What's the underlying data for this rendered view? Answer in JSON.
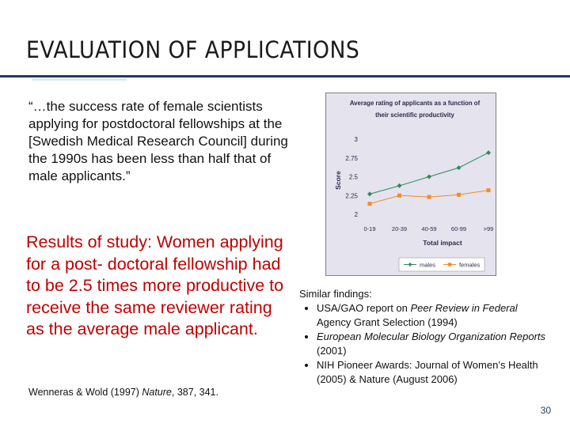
{
  "slide": {
    "title": "EVALUATION OF APPLICATIONS",
    "quote": "“…the success rate of female scientists applying for postdoctoral fellowships at the [Swedish Medical Research Council] during the 1990s has been less than half that of male applicants.”",
    "results": "Results of study: Women applying for a post- doctoral fellowship had to be 2.5 times more productive to receive the same reviewer rating as the average male applicant.",
    "citation": {
      "authors": "Wenneras & Wold (1997) ",
      "journal": "Nature",
      "ref": ", 387, 341."
    },
    "findings": {
      "heading": "Similar findings:",
      "items": [
        {
          "pre": "USA/GAO report on ",
          "em": "Peer Review in Federal",
          "post": " Agency Grant Selection (1994)"
        },
        {
          "pre": "",
          "em": "European Molecular Biology Organization Reports",
          "post": " (2001)"
        },
        {
          "pre": "NIH Pioneer Awards: Journal of Women’s Health (2005) & Nature (August 2006)",
          "em": "",
          "post": ""
        }
      ]
    },
    "page_number": "30"
  },
  "chart_data": {
    "type": "line",
    "title_line1": "Average rating of applicants as a function of",
    "title_line2": "their scientific productivity",
    "xlabel": "Total impact",
    "ylabel": "Score",
    "categories": [
      "0-19",
      "20-39",
      "40-59",
      "60-99",
      ">99"
    ],
    "yticks": [
      "3",
      "2.75",
      "2.5",
      "2.25",
      "2"
    ],
    "ylim": [
      2,
      3
    ],
    "series": [
      {
        "name": "males",
        "values": [
          2.27,
          2.38,
          2.5,
          2.62,
          2.82
        ],
        "color": "#2e8b57",
        "marker": "diamond"
      },
      {
        "name": "females",
        "values": [
          2.14,
          2.25,
          2.23,
          2.26,
          2.32
        ],
        "color": "#f28c28",
        "marker": "square"
      }
    ]
  }
}
